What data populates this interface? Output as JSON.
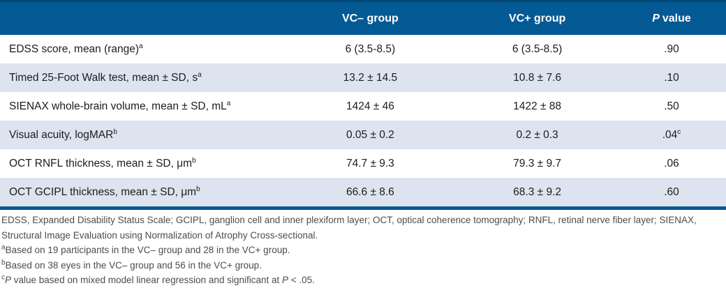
{
  "colors": {
    "header_blue": "#045a94",
    "header_top_edge": "#024872",
    "stripe_row": "#dde4f0",
    "body_text": "#1c1c1c",
    "footnote_text": "#4c4c4c"
  },
  "table": {
    "header": {
      "vc_minus_label": "VC– group",
      "vc_plus_label": "VC+ group",
      "p_italic": "P",
      "p_rest": "value"
    },
    "rows": [
      {
        "label": "EDSS score, mean (range)",
        "label_sup": "a",
        "vc_minus": "6 (3.5-8.5)",
        "vc_plus": "6 (3.5-8.5)",
        "p": ".90",
        "p_sup": ""
      },
      {
        "label": "Timed 25-Foot Walk test, mean ± SD, s",
        "label_sup": "a",
        "vc_minus": "13.2 ± 14.5",
        "vc_plus": "10.8 ± 7.6",
        "p": ".10",
        "p_sup": ""
      },
      {
        "label": "SIENAX whole-brain volume, mean ± SD, mL",
        "label_sup": "a",
        "vc_minus": "1424 ± 46",
        "vc_plus": "1422 ± 88",
        "p": ".50",
        "p_sup": ""
      },
      {
        "label": "Visual acuity, logMAR",
        "label_sup": "b",
        "vc_minus": "0.05 ± 0.2",
        "vc_plus": "0.2 ± 0.3",
        "p": ".04",
        "p_sup": "c"
      },
      {
        "label": "OCT RNFL thickness, mean ± SD, μm",
        "label_sup": "b",
        "vc_minus": "74.7 ± 9.3",
        "vc_plus": "79.3 ± 9.7",
        "p": ".06",
        "p_sup": ""
      },
      {
        "label": "OCT GCIPL thickness, mean ± SD, μm",
        "label_sup": "b",
        "vc_minus": "66.6 ± 8.6",
        "vc_plus": "68.3 ± 9.2",
        "p": ".60",
        "p_sup": ""
      }
    ]
  },
  "footnotes": {
    "abbreviations": "EDSS, Expanded Disability Status Scale; GCIPL, ganglion cell and inner plexiform layer; OCT, optical coherence tomography; RNFL, retinal nerve fiber layer; SIENAX, Structural Image Evaluation using Normalization of Atrophy Cross-sectional.",
    "a_sup": "a",
    "a_text": "Based on 19 participants in the VC– group and 28 in the VC+ group.",
    "b_sup": "b",
    "b_text": "Based on 38 eyes in the VC– group and 56 in the VC+ group.",
    "c_sup": "c",
    "c_italic1": "P",
    "c_text1": " value based on mixed model linear regression and significant at ",
    "c_italic2": "P",
    "c_text2": " < .05."
  }
}
